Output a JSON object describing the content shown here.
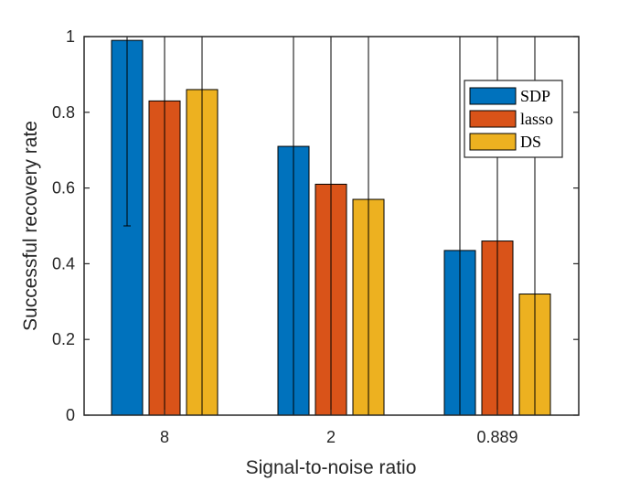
{
  "chart_data": {
    "type": "bar",
    "title": "",
    "xlabel": "Signal-to-noise ratio",
    "ylabel": "Successful recovery rate",
    "categories": [
      "8",
      "2",
      "0.889"
    ],
    "ylim": [
      0,
      1
    ],
    "yticks": [
      "0",
      "0.2",
      "0.4",
      "0.6",
      "0.8",
      "1"
    ],
    "ytick_values": [
      0,
      0.2,
      0.4,
      0.6,
      0.8,
      1
    ],
    "grid": false,
    "legend_position": "top-right",
    "series": [
      {
        "name": "SDP",
        "color": "#0072BD",
        "values": [
          0.99,
          0.71,
          0.435
        ],
        "err_low": [
          0.5,
          0.0,
          0.0
        ],
        "err_high": [
          1.0,
          1.0,
          1.0
        ]
      },
      {
        "name": "lasso",
        "color": "#D95319",
        "values": [
          0.83,
          0.61,
          0.46
        ],
        "err_low": [
          0.0,
          0.0,
          0.0
        ],
        "err_high": [
          1.0,
          1.0,
          1.0
        ]
      },
      {
        "name": "DS",
        "color": "#EDB120",
        "values": [
          0.86,
          0.57,
          0.32
        ],
        "err_low": [
          0.0,
          0.0,
          0.0
        ],
        "err_high": [
          1.0,
          1.0,
          1.0
        ]
      }
    ]
  }
}
